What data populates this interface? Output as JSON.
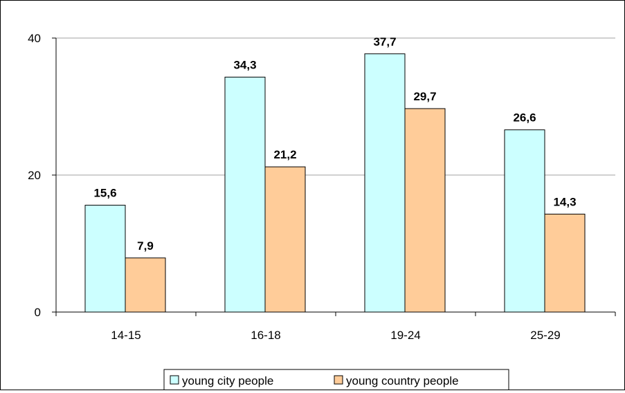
{
  "chart_data": {
    "type": "bar",
    "title": "",
    "xlabel": "",
    "ylabel": "",
    "categories": [
      "14-15",
      "16-18",
      "19-24",
      "25-29"
    ],
    "series": [
      {
        "name": "young city people",
        "values": [
          15.6,
          34.3,
          37.7,
          26.6
        ],
        "labels": [
          "15,6",
          "34,3",
          "37,7",
          "26,6"
        ],
        "color": "#CCFFFF"
      },
      {
        "name": "young country people",
        "values": [
          7.9,
          21.2,
          29.7,
          14.3
        ],
        "labels": [
          "7,9",
          "21,2",
          "29,7",
          "14,3"
        ],
        "color": "#FFCC99"
      }
    ],
    "ylim": [
      0,
      40
    ],
    "yticks": [
      0,
      20,
      40
    ],
    "ytick_labels": [
      "0",
      "20",
      "40"
    ],
    "grid": true,
    "legend": "bottom"
  }
}
